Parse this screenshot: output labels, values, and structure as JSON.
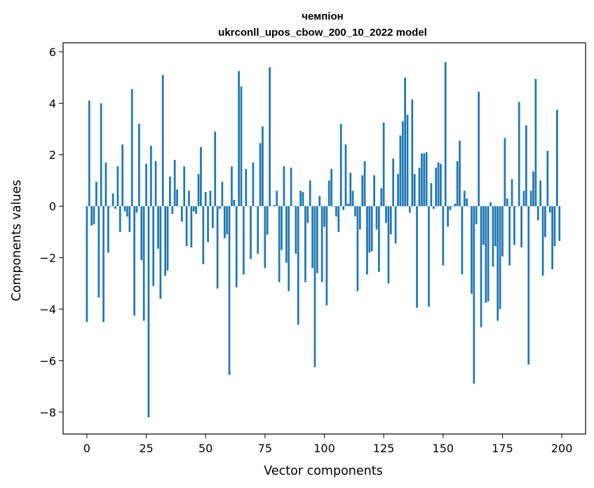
{
  "chart_data": {
    "type": "bar",
    "title_line1": "чемпіон",
    "title_line2": "ukrconll_upos_cbow_200_10_2022 model",
    "xlabel": "Vector components",
    "ylabel": "Components values",
    "xlim": [
      -10,
      210
    ],
    "ylim": [
      -8.85,
      6.35
    ],
    "xticks": [
      0,
      25,
      50,
      75,
      100,
      125,
      150,
      175,
      200
    ],
    "yticks": [
      -8,
      -6,
      -4,
      -2,
      0,
      2,
      4,
      6
    ],
    "xtick_labels": [
      "0",
      "25",
      "50",
      "75",
      "100",
      "125",
      "150",
      "175",
      "200"
    ],
    "ytick_labels": [
      "−8",
      "−6",
      "−4",
      "−2",
      "0",
      "2",
      "4",
      "6"
    ],
    "grid": false,
    "bar_color": "#1f77b4",
    "values": [
      -4.5,
      4.1,
      -0.75,
      -0.7,
      0.95,
      -3.55,
      4.0,
      -4.5,
      1.7,
      -1.8,
      0.0,
      0.5,
      -0.1,
      1.55,
      -1.0,
      2.4,
      -0.2,
      -0.4,
      -1.0,
      4.55,
      -4.25,
      -0.25,
      3.2,
      -2.1,
      -4.45,
      1.65,
      -8.2,
      2.35,
      -3.1,
      1.75,
      -1.65,
      -3.6,
      5.1,
      -2.7,
      -2.5,
      1.15,
      -0.3,
      1.8,
      0.65,
      0.0,
      -0.6,
      1.55,
      -1.55,
      0.6,
      -1.6,
      -0.2,
      -0.3,
      1.25,
      2.3,
      -2.25,
      0.55,
      -1.4,
      0.6,
      -0.85,
      2.9,
      -3.2,
      -0.1,
      0.95,
      -1.25,
      -1.1,
      -6.55,
      1.55,
      0.25,
      -3.15,
      5.25,
      4.65,
      -2.65,
      1.45,
      0.0,
      -2.05,
      1.7,
      0.0,
      -1.85,
      2.45,
      3.1,
      -2.4,
      -1.1,
      5.4,
      0.0,
      0.05,
      0.6,
      -2.95,
      -1.7,
      1.55,
      -2.2,
      -3.3,
      1.5,
      0.0,
      -1.85,
      -4.6,
      0.6,
      0.55,
      -2.95,
      -0.65,
      1.0,
      -2.4,
      -6.25,
      -2.6,
      0.4,
      -2.95,
      -0.8,
      -3.85,
      1.0,
      1.45,
      0.0,
      -0.4,
      -1.0,
      3.2,
      -0.15,
      2.4,
      0.1,
      1.3,
      0.6,
      -0.4,
      -3.3,
      -0.9,
      1.2,
      1.75,
      -2.65,
      -1.8,
      -1.75,
      1.2,
      -0.9,
      -2.55,
      0.7,
      3.25,
      -0.65,
      -3.0,
      -1.1,
      1.85,
      -1.45,
      1.25,
      2.75,
      3.3,
      5.0,
      3.55,
      -0.25,
      4.15,
      1.25,
      -3.95,
      1.5,
      2.05,
      2.05,
      2.1,
      -3.9,
      0.9,
      -0.1,
      1.5,
      1.7,
      1.65,
      -2.3,
      5.6,
      -0.8,
      -0.15,
      0.0,
      0.1,
      1.75,
      2.55,
      -2.65,
      0.6,
      0.3,
      0.0,
      -3.4,
      -6.9,
      -0.7,
      4.45,
      -4.7,
      -1.5,
      -3.75,
      -3.7,
      0.15,
      -2.35,
      -1.55,
      -4.45,
      -4.0,
      -1.95,
      2.65,
      0.3,
      -2.3,
      1.05,
      -1.5,
      0.0,
      4.05,
      -1.6,
      0.6,
      3.15,
      -6.15,
      0.6,
      1.35,
      4.95,
      -0.55,
      1.0,
      -2.7,
      -1.2,
      2.15,
      -0.25,
      -2.45,
      -1.55,
      3.75,
      -1.35
    ]
  }
}
